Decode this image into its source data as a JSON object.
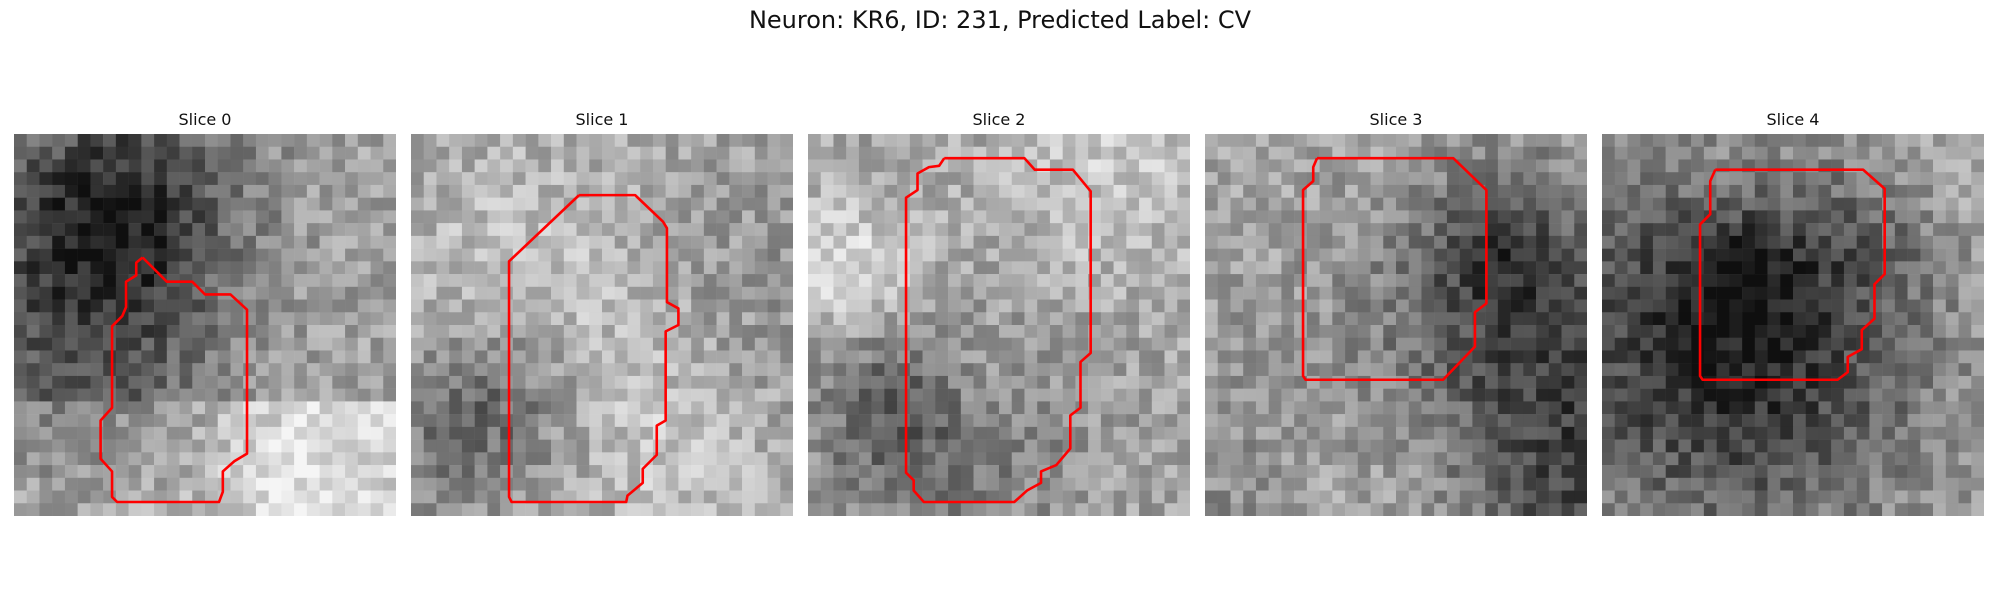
{
  "figure": {
    "title": "Neuron: KR6, ID: 231, Predicted Label: CV",
    "outline_color": "#ff0000"
  },
  "slices": [
    {
      "title": "Slice 0",
      "seed": 11
    },
    {
      "title": "Slice 1",
      "seed": 23
    },
    {
      "title": "Slice 2",
      "seed": 37
    },
    {
      "title": "Slice 3",
      "seed": 41
    },
    {
      "title": "Slice 4",
      "seed": 53
    }
  ]
}
